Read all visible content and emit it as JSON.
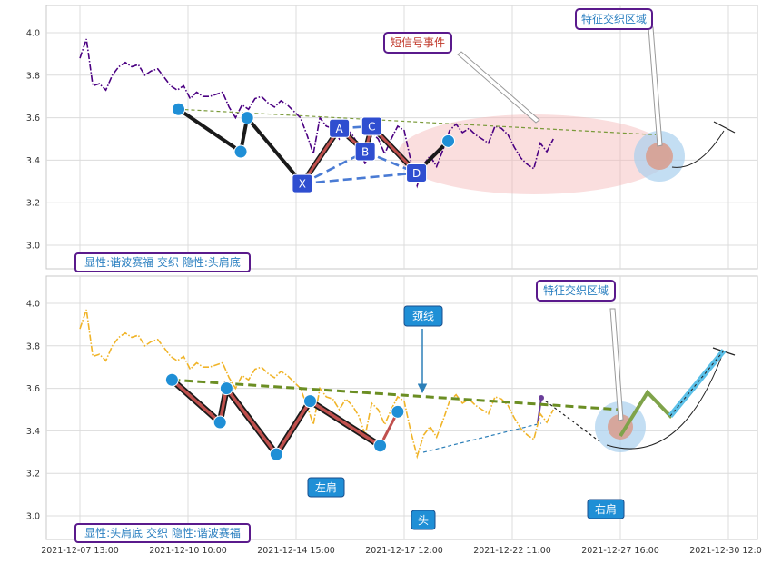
{
  "chart_data": [
    {
      "type": "line",
      "panel": "top",
      "x_ticks": [
        "2021-12-07 13:00",
        "2021-12-10 10:00",
        "2021-12-14 15:00",
        "2021-12-17 12:00",
        "2021-12-22 11:00",
        "2021-12-27 16:00",
        "2021-12-30 12:00"
      ],
      "y_ticks": [
        "3.0",
        "3.2",
        "3.4",
        "3.6",
        "3.8",
        "4.0"
      ],
      "ylim": [
        2.89,
        4.12
      ],
      "grid": true,
      "series": [
        {
          "style": "dash-dot",
          "color": "#4b0082",
          "values": [
            3.88,
            3.97,
            3.75,
            3.76,
            3.73,
            3.8,
            3.84,
            3.86,
            3.84,
            3.85,
            3.8,
            3.82,
            3.83,
            3.79,
            3.75,
            3.73,
            3.75,
            3.69,
            3.72,
            3.7,
            3.7,
            3.71,
            3.72,
            3.65,
            3.6,
            3.66,
            3.64,
            3.69,
            3.7,
            3.67,
            3.65,
            3.68,
            3.66,
            3.63,
            3.6,
            3.52,
            3.43,
            3.6,
            3.56,
            3.55,
            3.5,
            3.55,
            3.52,
            3.47,
            3.38,
            3.53,
            3.5,
            3.43,
            3.5,
            3.56,
            3.54,
            3.4,
            3.28,
            3.38,
            3.42,
            3.37,
            3.45,
            3.54,
            3.57,
            3.53,
            3.55,
            3.52,
            3.5,
            3.48,
            3.56,
            3.55,
            3.52,
            3.46,
            3.41,
            3.38,
            3.36,
            3.48,
            3.44,
            3.5
          ]
        }
      ],
      "pattern": [
        {
          "label": "",
          "x": 15.2,
          "y": 3.64
        },
        {
          "label": "",
          "x": 24.8,
          "y": 3.44
        },
        {
          "label": "",
          "x": 25.8,
          "y": 3.6
        },
        {
          "label": "X",
          "x": 34.3,
          "y": 3.29
        },
        {
          "label": "A",
          "x": 40.0,
          "y": 3.55
        },
        {
          "label": "B",
          "x": 44.0,
          "y": 3.44
        },
        {
          "label": "C",
          "x": 45.0,
          "y": 3.56
        },
        {
          "label": "D",
          "x": 51.9,
          "y": 3.34
        },
        {
          "label": "",
          "x": 56.8,
          "y": 3.49
        }
      ],
      "annotations": {
        "event": "短信号事件",
        "region": "特征交织区域",
        "caption": "显性:谐波赛福 交织 隐性:头肩底"
      }
    },
    {
      "type": "line",
      "panel": "bottom",
      "x_ticks": [
        "2021-12-07 13:00",
        "2021-12-10 10:00",
        "2021-12-14 15:00",
        "2021-12-17 12:00",
        "2021-12-22 11:00",
        "2021-12-27 16:00",
        "2021-12-30 12:00"
      ],
      "y_ticks": [
        "3.0",
        "3.2",
        "3.4",
        "3.6",
        "3.8",
        "4.0"
      ],
      "ylim": [
        2.89,
        4.12
      ],
      "grid": true,
      "series": [
        {
          "style": "dash-dot",
          "color": "#f0b429",
          "values": [
            3.88,
            3.97,
            3.75,
            3.76,
            3.73,
            3.8,
            3.84,
            3.86,
            3.84,
            3.85,
            3.8,
            3.82,
            3.83,
            3.79,
            3.75,
            3.73,
            3.75,
            3.69,
            3.72,
            3.7,
            3.7,
            3.71,
            3.72,
            3.65,
            3.6,
            3.66,
            3.64,
            3.69,
            3.7,
            3.67,
            3.65,
            3.68,
            3.66,
            3.63,
            3.6,
            3.52,
            3.43,
            3.6,
            3.56,
            3.55,
            3.5,
            3.55,
            3.52,
            3.47,
            3.38,
            3.53,
            3.5,
            3.43,
            3.5,
            3.56,
            3.54,
            3.4,
            3.28,
            3.38,
            3.42,
            3.37,
            3.45,
            3.54,
            3.57,
            3.53,
            3.55,
            3.52,
            3.5,
            3.48,
            3.56,
            3.55,
            3.52,
            3.46,
            3.41,
            3.38,
            3.36,
            3.48,
            3.44,
            3.5
          ]
        }
      ],
      "pattern": [
        {
          "label": "",
          "x": 14.2,
          "y": 3.64
        },
        {
          "label": "",
          "x": 21.6,
          "y": 3.44
        },
        {
          "label": "",
          "x": 22.6,
          "y": 3.6
        },
        {
          "label": "",
          "x": 30.3,
          "y": 3.29
        },
        {
          "label": "",
          "x": 35.5,
          "y": 3.54
        },
        {
          "label": "",
          "x": 46.3,
          "y": 3.33
        },
        {
          "label": "",
          "x": 49.0,
          "y": 3.49
        }
      ],
      "annotations": {
        "neckline": "颈线",
        "region": "特征交织区域",
        "left_shoulder": "左肩",
        "head": "头",
        "right_shoulder": "右肩",
        "caption": "显性:头肩底 交织 隐性:谐波赛福"
      }
    }
  ]
}
